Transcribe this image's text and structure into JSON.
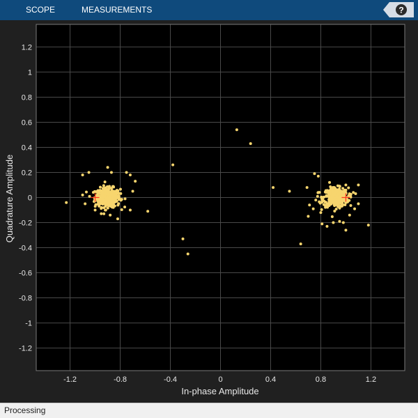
{
  "toolstrip": {
    "tabs": [
      "SCOPE",
      "MEASUREMENTS"
    ],
    "help_label": "?",
    "accent": "#0f4a7c"
  },
  "status": {
    "text": "Processing"
  },
  "chart_data": {
    "type": "scatter",
    "xlabel": "In-phase Amplitude",
    "ylabel": "Quadrature Amplitude",
    "xlim": [
      -1.47,
      1.47
    ],
    "ylim": [
      -1.38,
      1.38
    ],
    "xticks": [
      -1.2,
      -0.8,
      -0.4,
      0,
      0.4,
      0.8,
      1.2
    ],
    "xtick_labels": [
      "-1.2",
      "-0.8",
      "-0.4",
      "0",
      "0.4",
      "0.8",
      "1.2"
    ],
    "yticks": [
      1.2,
      1,
      0.8,
      0.6,
      0.4,
      0.2,
      0,
      -0.2,
      -0.4,
      -0.6,
      -0.8,
      -1,
      -1.2
    ],
    "ytick_labels": [
      "1.2",
      "1",
      "0.8",
      "0.6",
      "0.4",
      "0.2",
      "0",
      "-0.2",
      "-0.4",
      "-0.6",
      "-0.8",
      "-1",
      "-1.2"
    ],
    "grid": true,
    "colors": {
      "points": "#f7d56e",
      "reference": "#ff3b1f",
      "plot_bg": "#000000",
      "grid": "#4a4a4a",
      "text": "#e8e8e8"
    },
    "reference_points": [
      [
        -1,
        0
      ],
      [
        1,
        0
      ]
    ],
    "clusters": [
      {
        "center": [
          -0.9,
          0
        ],
        "count": 380
      },
      {
        "center": [
          0.92,
          0
        ],
        "count": 380
      }
    ],
    "points": [
      [
        -1.23,
        -0.04
      ],
      [
        -1.1,
        0.18
      ],
      [
        -1.05,
        0.2
      ],
      [
        -0.9,
        0.24
      ],
      [
        -0.87,
        0.2
      ],
      [
        -0.75,
        0.2
      ],
      [
        -0.72,
        0.18
      ],
      [
        -0.68,
        0.13
      ],
      [
        -0.7,
        0.05
      ],
      [
        -0.58,
        -0.11
      ],
      [
        -0.72,
        -0.1
      ],
      [
        -0.82,
        -0.17
      ],
      [
        -0.88,
        -0.14
      ],
      [
        -0.93,
        -0.13
      ],
      [
        -1.0,
        -0.1
      ],
      [
        -1.08,
        -0.05
      ],
      [
        -1.1,
        0.02
      ],
      [
        -0.38,
        0.26
      ],
      [
        -0.3,
        -0.33
      ],
      [
        -0.26,
        -0.45
      ],
      [
        0.13,
        0.54
      ],
      [
        0.24,
        0.43
      ],
      [
        0.42,
        0.08
      ],
      [
        0.55,
        0.05
      ],
      [
        0.64,
        -0.37
      ],
      [
        0.69,
        0.08
      ],
      [
        0.71,
        -0.06
      ],
      [
        0.7,
        -0.15
      ],
      [
        0.74,
        -0.09
      ],
      [
        0.75,
        0.19
      ],
      [
        0.78,
        0.17
      ],
      [
        0.8,
        -0.12
      ],
      [
        0.81,
        -0.21
      ],
      [
        0.85,
        -0.23
      ],
      [
        0.87,
        0.12
      ],
      [
        0.9,
        -0.2
      ],
      [
        0.95,
        -0.19
      ],
      [
        0.98,
        -0.2
      ],
      [
        1.0,
        -0.26
      ],
      [
        1.03,
        -0.14
      ],
      [
        1.07,
        -0.09
      ],
      [
        1.1,
        -0.05
      ],
      [
        1.1,
        0.1
      ],
      [
        1.0,
        0.1
      ],
      [
        1.06,
        0.04
      ],
      [
        1.18,
        -0.22
      ],
      [
        0.78,
        0.04
      ],
      [
        0.76,
        -0.02
      ]
    ]
  }
}
